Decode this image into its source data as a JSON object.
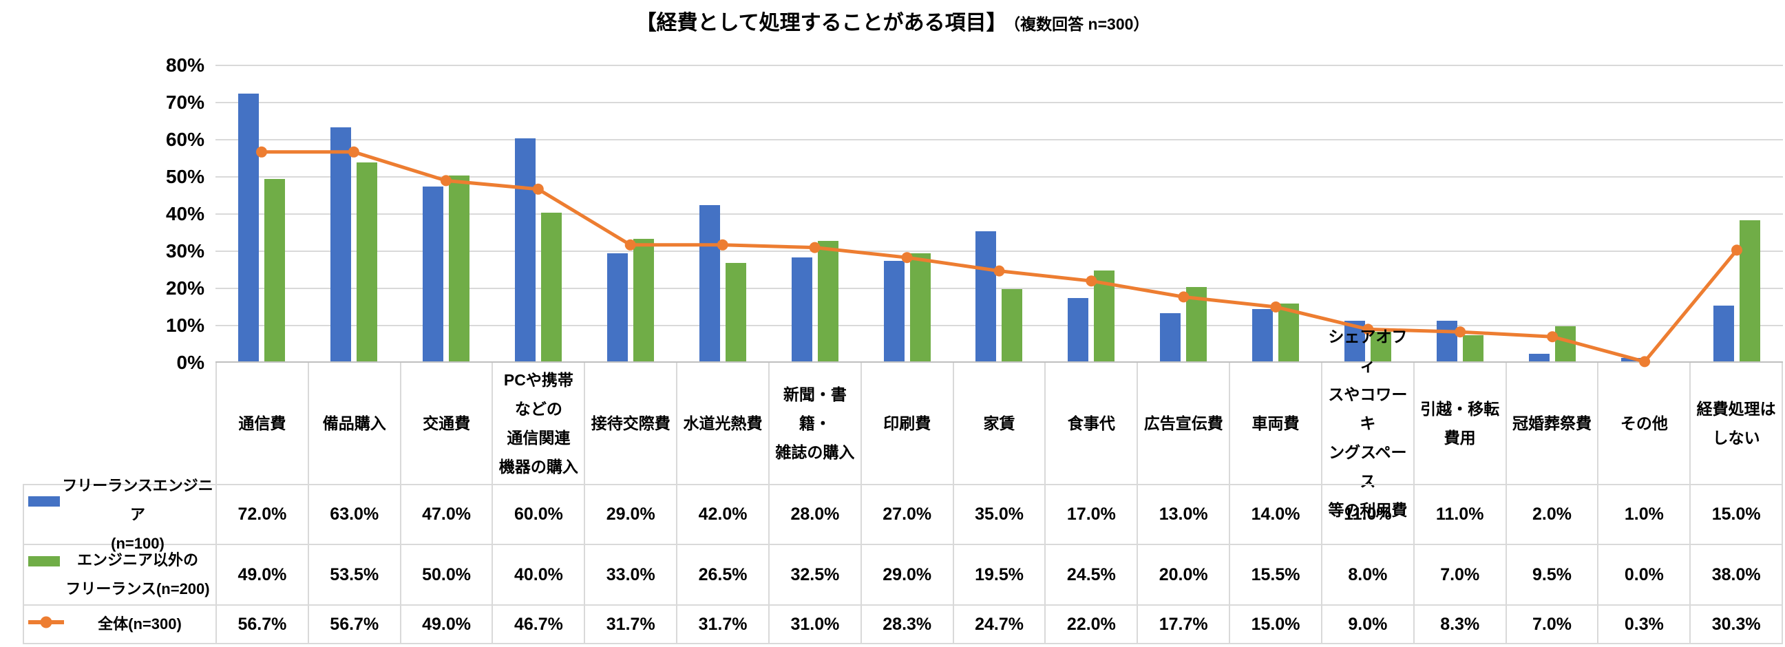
{
  "title": {
    "main": "【経費として処理することがある項目】",
    "sub": "（複数回答 n=300）"
  },
  "colors": {
    "blue": "#4472C4",
    "green": "#70AD47",
    "orange": "#ED7D31",
    "gridline": "#D9D9D9",
    "axis": "#BFBFBF"
  },
  "chart_data": {
    "type": "bar+line",
    "title": "【経費として処理することがある項目】（複数回答 n=300）",
    "ylim": [
      0,
      80
    ],
    "ytick_step": 10,
    "ytick_labels": [
      "0%",
      "10%",
      "20%",
      "30%",
      "40%",
      "50%",
      "60%",
      "70%",
      "80%"
    ],
    "grid": true,
    "legend_position": "table-left",
    "categories": [
      "通信費",
      "備品購入",
      "交通費",
      "PCや携帯などの通信関連機器の購入",
      "接待交際費",
      "水道光熱費",
      "新聞・書籍・雑誌の購入",
      "印刷費",
      "家賃",
      "食事代",
      "広告宣伝費",
      "車両費",
      "シェアオフィスやコワーキングスペース等の利用費",
      "引越・移転費用",
      "冠婚葬祭費",
      "その他",
      "経費処理はしない"
    ],
    "label_lines": [
      [
        "通信費"
      ],
      [
        "備品購入"
      ],
      [
        "交通費"
      ],
      [
        "PCや携帯",
        "などの",
        "通信関連",
        "機器の購入"
      ],
      [
        "接待交際費"
      ],
      [
        "水道光熱費"
      ],
      [
        "新聞・書籍・",
        "雑誌の購入"
      ],
      [
        "印刷費"
      ],
      [
        "家賃"
      ],
      [
        "食事代"
      ],
      [
        "広告宣伝費"
      ],
      [
        "車両費"
      ],
      [
        "シェアオフィ",
        "スやコワーキ",
        "ングスペース",
        "等の利用費"
      ],
      [
        "引越・移転",
        "費用"
      ],
      [
        "冠婚葬祭費"
      ],
      [
        "その他"
      ],
      [
        "経費処理は",
        "しない"
      ]
    ],
    "series": [
      {
        "name": "フリーランスエンジニア(n=100)",
        "type": "bar",
        "color": "#4472C4",
        "data_name": "bar-freelance-engineer",
        "values": [
          72.0,
          63.0,
          47.0,
          60.0,
          29.0,
          42.0,
          28.0,
          27.0,
          35.0,
          17.0,
          13.0,
          14.0,
          11.0,
          11.0,
          2.0,
          1.0,
          15.0
        ]
      },
      {
        "name": "エンジニア以外のフリーランス(n=200)",
        "type": "bar",
        "color": "#70AD47",
        "data_name": "bar-non-engineer-freelance",
        "values": [
          49.0,
          53.5,
          50.0,
          40.0,
          33.0,
          26.5,
          32.5,
          29.0,
          19.5,
          24.5,
          20.0,
          15.5,
          8.0,
          7.0,
          9.5,
          0.0,
          38.0
        ]
      },
      {
        "name": "全体(n=300)",
        "type": "line",
        "color": "#ED7D31",
        "data_name": "line-overall",
        "values": [
          56.7,
          56.7,
          49.0,
          46.7,
          31.7,
          31.7,
          31.0,
          28.3,
          24.7,
          22.0,
          17.7,
          15.0,
          9.0,
          8.3,
          7.0,
          0.3,
          30.3
        ]
      }
    ]
  },
  "table": {
    "rows": [
      {
        "key_type": "bar",
        "key_color": "#4472C4",
        "key_name": "legend-key-freelance-engineer",
        "legend_lines": [
          "フリーランスエンジニア",
          "(n=100)"
        ],
        "values": [
          "72.0%",
          "63.0%",
          "47.0%",
          "60.0%",
          "29.0%",
          "42.0%",
          "28.0%",
          "27.0%",
          "35.0%",
          "17.0%",
          "13.0%",
          "14.0%",
          "11.0%",
          "11.0%",
          "2.0%",
          "1.0%",
          "15.0%"
        ]
      },
      {
        "key_type": "bar",
        "key_color": "#70AD47",
        "key_name": "legend-key-non-engineer-freelance",
        "legend_lines": [
          "エンジニア以外の",
          "フリーランス(n=200)"
        ],
        "values": [
          "49.0%",
          "53.5%",
          "50.0%",
          "40.0%",
          "33.0%",
          "26.5%",
          "32.5%",
          "29.0%",
          "19.5%",
          "24.5%",
          "20.0%",
          "15.5%",
          "8.0%",
          "7.0%",
          "9.5%",
          "0.0%",
          "38.0%"
        ]
      },
      {
        "key_type": "line",
        "key_color": "#ED7D31",
        "key_name": "legend-key-overall",
        "legend_lines": [
          "全体(n=300)"
        ],
        "values": [
          "56.7%",
          "56.7%",
          "49.0%",
          "46.7%",
          "31.7%",
          "31.7%",
          "31.0%",
          "28.3%",
          "24.7%",
          "22.0%",
          "17.7%",
          "15.0%",
          "9.0%",
          "8.3%",
          "7.0%",
          "0.3%",
          "30.3%"
        ]
      }
    ]
  }
}
